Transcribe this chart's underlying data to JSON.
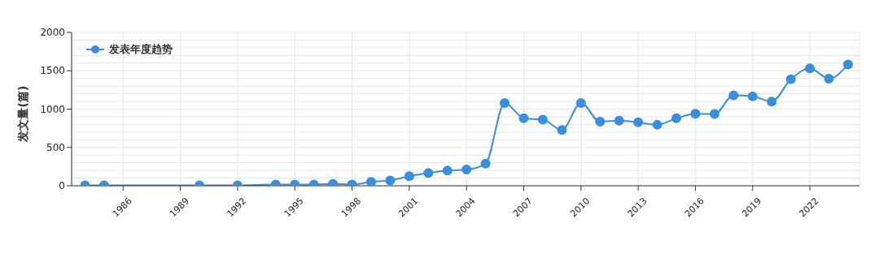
{
  "chart_data": {
    "type": "line",
    "ylabel": "发文量(篇)",
    "x": [
      1984,
      1985,
      1990,
      1992,
      1994,
      1995,
      1996,
      1997,
      1998,
      1999,
      2000,
      2001,
      2002,
      2003,
      2004,
      2005,
      2006,
      2007,
      2008,
      2009,
      2010,
      2011,
      2012,
      2013,
      2014,
      2015,
      2016,
      2017,
      2018,
      2019,
      2020,
      2021,
      2022,
      2023,
      2024
    ],
    "series": [
      {
        "name": "发表年度趋势",
        "color": "#3a8ede",
        "values": [
          5,
          5,
          5,
          5,
          15,
          15,
          15,
          25,
          15,
          51,
          70,
          125,
          167,
          199,
          211,
          288,
          1080,
          881,
          862,
          728,
          1080,
          837,
          849,
          827,
          795,
          881,
          939,
          936,
          1179,
          1167,
          1099,
          1388,
          1532,
          1397,
          1583
        ]
      }
    ],
    "xlim": [
      1983.3,
      2024.6
    ],
    "xticks": [
      1986,
      1989,
      1992,
      1995,
      1998,
      2001,
      2004,
      2007,
      2010,
      2013,
      2016,
      2019,
      2022
    ],
    "ylim": [
      0,
      2000
    ],
    "yticks": [
      0,
      {
        "value": 100,
        "label": null
      },
      {
        "value": 200,
        "label": null
      },
      {
        "value": 300,
        "label": null
      },
      {
        "value": 400,
        "label": null
      },
      500,
      {
        "value": 600,
        "label": null
      },
      {
        "value": 700,
        "label": null
      },
      {
        "value": 800,
        "label": null
      },
      {
        "value": 900,
        "label": null
      },
      1000,
      {
        "value": 1100,
        "label": null
      },
      {
        "value": 1200,
        "label": null
      },
      {
        "value": 1300,
        "label": null
      },
      {
        "value": 1400,
        "label": null
      },
      1500,
      {
        "value": 1600,
        "label": null
      },
      {
        "value": 1700,
        "label": null
      },
      {
        "value": 1800,
        "label": null
      },
      {
        "value": 1900,
        "label": null
      },
      2000
    ],
    "grid": true,
    "legend": "top left",
    "marker": "circle",
    "line_style": "solid"
  }
}
